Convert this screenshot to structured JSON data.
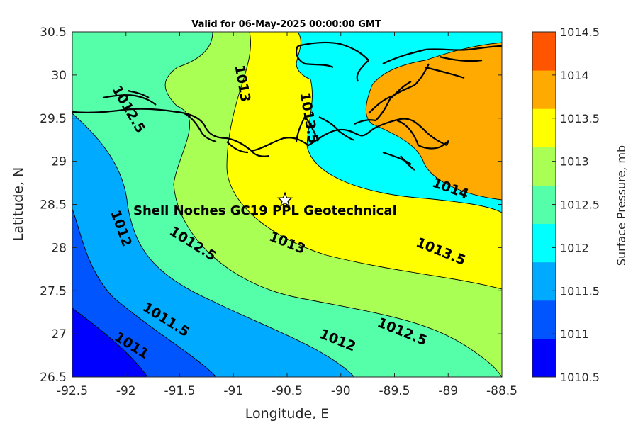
{
  "title": "Valid for 06-May-2025 00:00:00 GMT",
  "xlabel": "Longitude, E",
  "ylabel": "Latitude, N",
  "colorbar_label": "Surface Pressure, mb",
  "site_label": "Shell Noches   GC19 PPL  Geotechnical",
  "site_marker": {
    "lon": -90.52,
    "lat": 28.55,
    "icon": "star-icon"
  },
  "chart_data": {
    "type": "contour-map",
    "xlim": [
      -92.5,
      -88.5
    ],
    "ylim": [
      26.5,
      30.5
    ],
    "x_ticks": [
      "-92.5",
      "-92",
      "-91.5",
      "-91",
      "-90.5",
      "-90",
      "-89.5",
      "-89",
      "-88.5"
    ],
    "y_ticks": [
      "26.5",
      "27",
      "27.5",
      "28",
      "28.5",
      "29",
      "29.5",
      "30",
      "30.5"
    ],
    "colorbar_ticks": [
      "1010.5",
      "1011",
      "1011.5",
      "1012",
      "1012.5",
      "1013",
      "1013.5",
      "1014",
      "1014.5"
    ],
    "levels": [
      1010.5,
      1011,
      1011.5,
      1012,
      1012.5,
      1013,
      1013.5,
      1014,
      1014.5
    ],
    "level_colors": [
      "#0000ff",
      "#0055ff",
      "#00aaff",
      "#00ffff",
      "#55ffaa",
      "#aaff55",
      "#ffff00",
      "#ffaa00",
      "#ff5500"
    ],
    "contour_labels": [
      {
        "text": "1011",
        "lon": -91.95,
        "lat": 26.86
      },
      {
        "text": "1011.5",
        "lon": -91.63,
        "lat": 27.16
      },
      {
        "text": "1012",
        "lon": -90.03,
        "lat": 26.92
      },
      {
        "text": "1012.5",
        "lon": -89.43,
        "lat": 27.02
      },
      {
        "text": "1012",
        "lon": -92.05,
        "lat": 28.22
      },
      {
        "text": "1012.5",
        "lon": -91.38,
        "lat": 28.04
      },
      {
        "text": "1013",
        "lon": -90.5,
        "lat": 28.05
      },
      {
        "text": "1013.5",
        "lon": -89.07,
        "lat": 27.95
      },
      {
        "text": "1014",
        "lon": -88.98,
        "lat": 28.68
      },
      {
        "text": "1013",
        "lon": -90.92,
        "lat": 29.9
      },
      {
        "text": "1013.5",
        "lon": -90.3,
        "lat": 29.5
      },
      {
        "text": "1012.5",
        "lon": -91.98,
        "lat": 29.6
      }
    ]
  }
}
